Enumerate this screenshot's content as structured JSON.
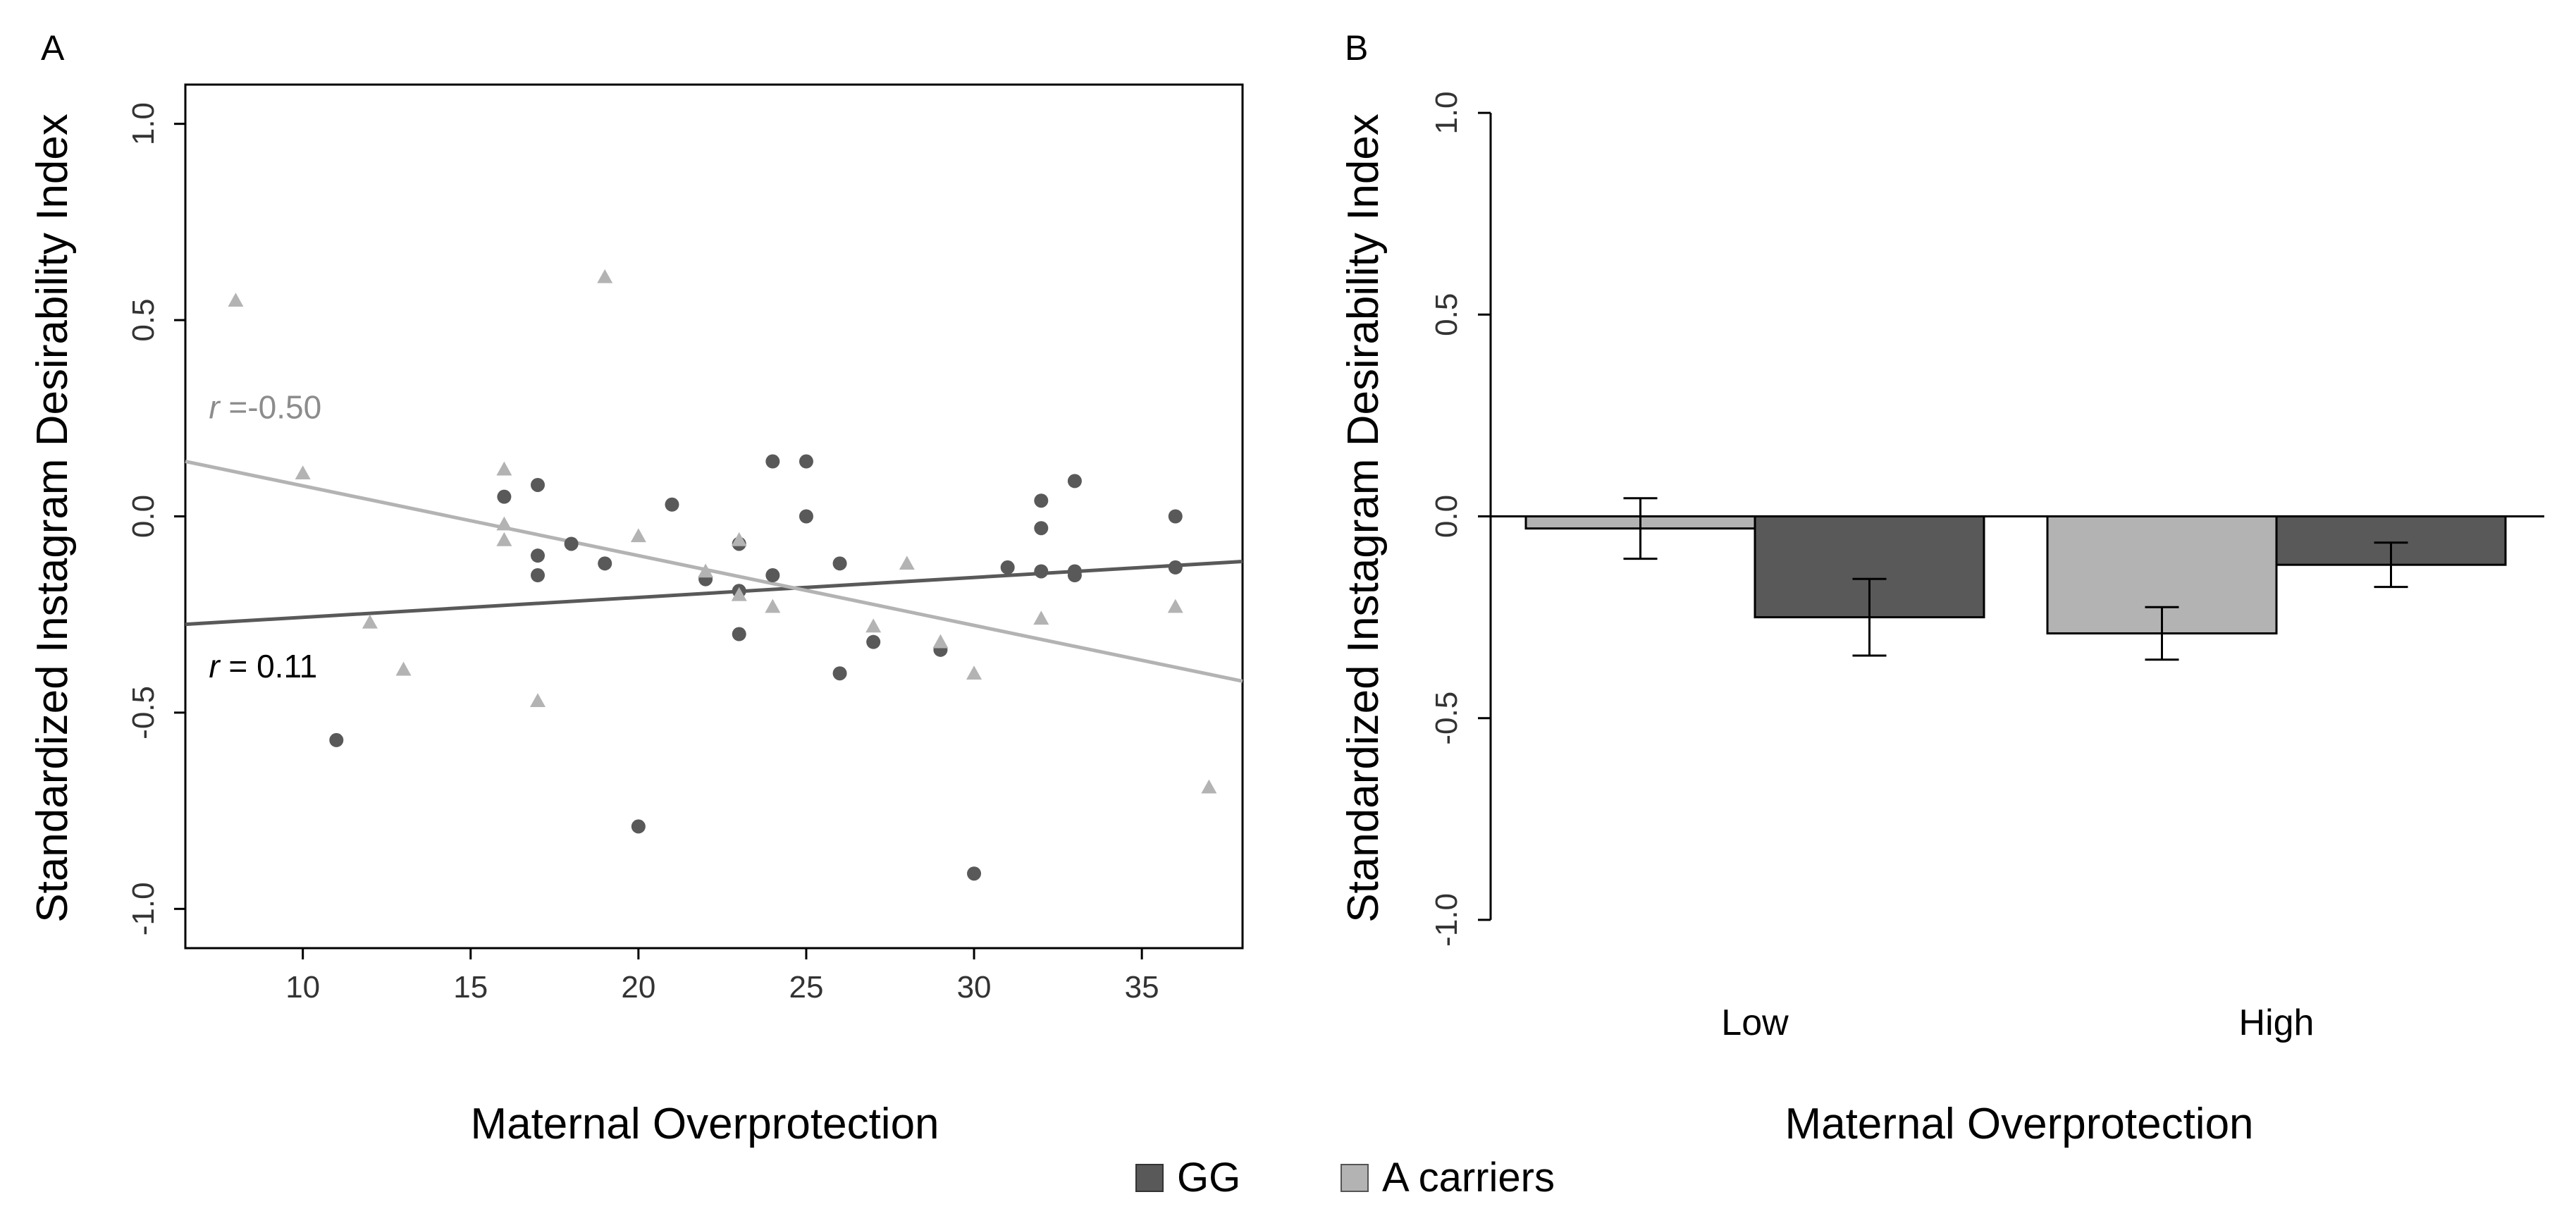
{
  "panels": {
    "a_label": "A",
    "b_label": "B"
  },
  "colors": {
    "gg": "#595959",
    "a_carriers": "#b3b3b3",
    "axis": "#000000"
  },
  "legend": {
    "items": [
      {
        "label": "GG",
        "color": "#595959"
      },
      {
        "label": "A carriers",
        "color": "#b3b3b3"
      }
    ]
  },
  "chart_data": [
    {
      "type": "scatter",
      "panel": "A",
      "xlabel": "Maternal Overprotection",
      "ylabel": "Standardized Instagram Desirability Index",
      "xlim": [
        6.5,
        38
      ],
      "ylim": [
        -1.1,
        1.1
      ],
      "xticks": [
        10,
        15,
        20,
        25,
        30,
        35
      ],
      "yticks": [
        -1.0,
        -0.5,
        0.0,
        0.5,
        1.0
      ],
      "ytick_labels": [
        "-1.0",
        "-0.5",
        "0.0",
        "0.5",
        "1.0"
      ],
      "grid": false,
      "series": [
        {
          "name": "GG",
          "marker": "circle",
          "color": "#595959",
          "points": [
            [
              11,
              -0.57
            ],
            [
              16,
              0.05
            ],
            [
              17,
              0.08
            ],
            [
              17,
              -0.1
            ],
            [
              17,
              -0.15
            ],
            [
              18,
              -0.07
            ],
            [
              19,
              -0.12
            ],
            [
              20,
              -0.79
            ],
            [
              21,
              0.03
            ],
            [
              22,
              -0.16
            ],
            [
              23,
              -0.07
            ],
            [
              23,
              -0.19
            ],
            [
              23,
              -0.3
            ],
            [
              24,
              0.14
            ],
            [
              24,
              -0.15
            ],
            [
              25,
              0.14
            ],
            [
              25,
              0.0
            ],
            [
              26,
              -0.12
            ],
            [
              26,
              -0.4
            ],
            [
              27,
              -0.32
            ],
            [
              29,
              -0.34
            ],
            [
              30,
              -0.91
            ],
            [
              31,
              -0.13
            ],
            [
              32,
              0.04
            ],
            [
              32,
              -0.03
            ],
            [
              32,
              -0.14
            ],
            [
              33,
              0.09
            ],
            [
              33,
              -0.14
            ],
            [
              33,
              -0.15
            ],
            [
              36,
              0.0
            ],
            [
              36,
              -0.13
            ]
          ],
          "fit_line": {
            "x": [
              6.5,
              38
            ],
            "y": [
              -0.275,
              -0.115
            ]
          },
          "annotation": {
            "italic": "r",
            "text": " = 0.11",
            "x": 7.2,
            "y": -0.41
          }
        },
        {
          "name": "A carriers",
          "marker": "triangle",
          "color": "#b3b3b3",
          "points": [
            [
              8,
              0.55
            ],
            [
              10,
              0.11
            ],
            [
              12,
              -0.27
            ],
            [
              13,
              -0.39
            ],
            [
              16,
              0.12
            ],
            [
              16,
              -0.02
            ],
            [
              16,
              -0.06
            ],
            [
              17,
              -0.47
            ],
            [
              19,
              0.61
            ],
            [
              20,
              -0.05
            ],
            [
              22,
              -0.14
            ],
            [
              23,
              -0.06
            ],
            [
              23,
              -0.2
            ],
            [
              24,
              -0.23
            ],
            [
              27,
              -0.28
            ],
            [
              28,
              -0.12
            ],
            [
              29,
              -0.32
            ],
            [
              30,
              -0.4
            ],
            [
              32,
              -0.26
            ],
            [
              36,
              -0.23
            ],
            [
              37,
              -0.69
            ]
          ],
          "fit_line": {
            "x": [
              6.5,
              38
            ],
            "y": [
              0.14,
              -0.42
            ]
          },
          "annotation": {
            "italic": "r",
            "text": " =-0.50",
            "x": 7.2,
            "y": 0.25
          }
        }
      ]
    },
    {
      "type": "bar",
      "panel": "B",
      "xlabel": "Maternal Overprotection",
      "ylabel": "Standardized Instagram Desirability Index",
      "categories": [
        "Low",
        "High"
      ],
      "ylim": [
        -1.07,
        1.07
      ],
      "yticks": [
        -1.0,
        -0.5,
        0.0,
        0.5,
        1.0
      ],
      "ytick_labels": [
        "-1.0",
        "-0.5",
        "0.0",
        "0.5",
        "1.0"
      ],
      "grid": false,
      "series": [
        {
          "name": "A carriers",
          "color": "#b3b3b3",
          "values": [
            -0.03,
            -0.29
          ],
          "error": [
            0.075,
            0.065
          ]
        },
        {
          "name": "GG",
          "color": "#595959",
          "values": [
            -0.25,
            -0.12
          ],
          "error": [
            0.095,
            0.055
          ]
        }
      ]
    }
  ]
}
